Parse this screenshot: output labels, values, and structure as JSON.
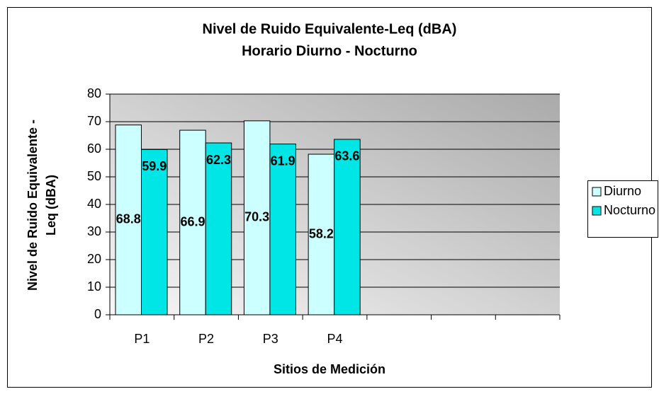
{
  "chart_data": {
    "type": "bar",
    "title": "Nivel de Ruido Equivalente-Leq (dBA)",
    "subtitle": "Horario Diurno - Nocturno",
    "x_label": "Sitios de Medición",
    "y_label": [
      "Nivel de Ruido Equivalente -",
      "Leq (dBA)"
    ],
    "categories": [
      "P1",
      "P2",
      "P3",
      "P4",
      null,
      null,
      null
    ],
    "series": [
      {
        "name": "Diurno",
        "color": "#ccffff",
        "values": [
          68.8,
          66.9,
          70.3,
          58.2,
          null,
          null,
          null
        ]
      },
      {
        "name": "Nocturno",
        "color": "#00e6e6",
        "values": [
          59.9,
          62.3,
          61.9,
          63.6,
          null,
          null,
          null
        ]
      }
    ],
    "ylim": [
      0,
      80
    ],
    "yticks": [
      0,
      10,
      20,
      30,
      40,
      50,
      60,
      70,
      80
    ],
    "grid": true,
    "legend": "right",
    "data_labels": true
  }
}
